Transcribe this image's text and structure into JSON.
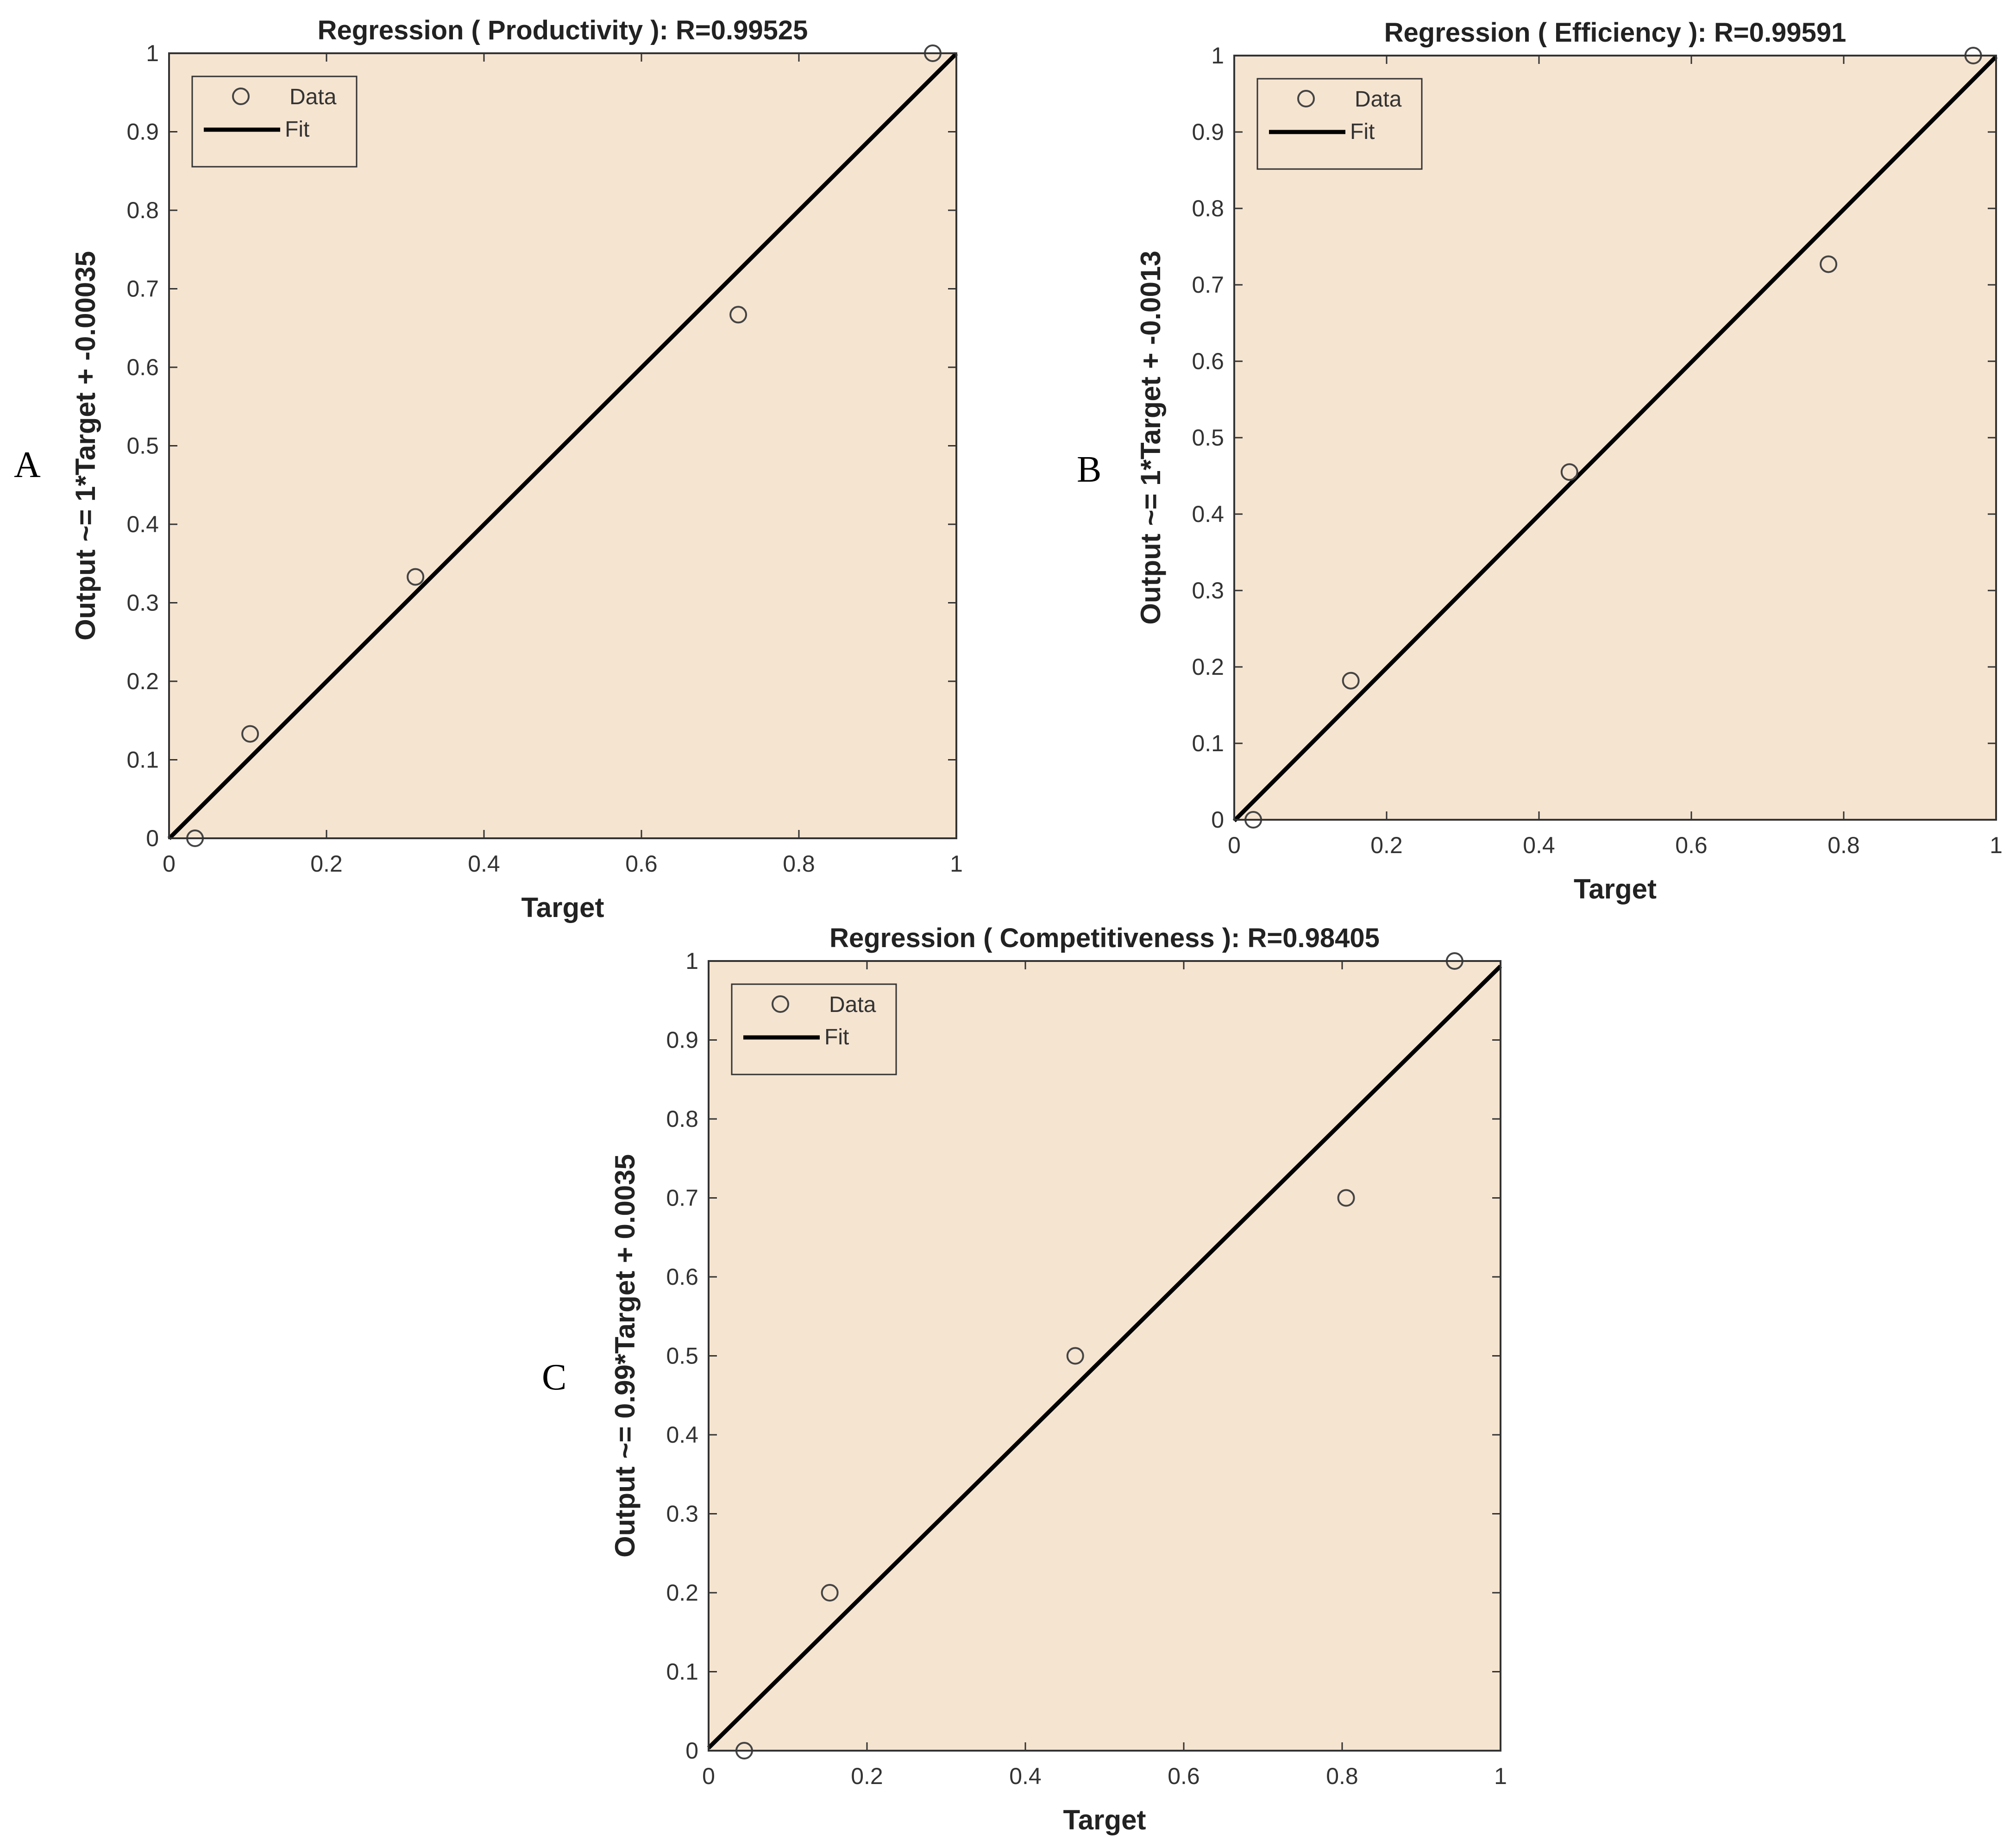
{
  "colors": {
    "plot_background": "#f5e4d0",
    "axis": "#333333",
    "fit_line": "#000000",
    "marker_edge": "#444444"
  },
  "panels": [
    {
      "letter": "A"
    },
    {
      "letter": "B"
    },
    {
      "letter": "C"
    }
  ],
  "chart_data": [
    {
      "type": "scatter",
      "title": "Regression ( Productivity ): R=0.99525",
      "xlabel": "Target",
      "ylabel": "Output ~= 1*Target + -0.00035",
      "xlim": [
        0,
        1
      ],
      "ylim": [
        0,
        1
      ],
      "x_ticks": [
        "0",
        "0.2",
        "0.4",
        "0.6",
        "0.8",
        "1"
      ],
      "y_ticks": [
        "0",
        "0.1",
        "0.2",
        "0.3",
        "0.4",
        "0.5",
        "0.6",
        "0.7",
        "0.8",
        "0.9",
        "1"
      ],
      "grid": false,
      "legend_placement": "top-left",
      "series": [
        {
          "name": "Data",
          "marker": "open-circle",
          "x": [
            0.033,
            0.103,
            0.313,
            0.723,
            0.97
          ],
          "y": [
            0.0,
            0.133,
            0.333,
            0.667,
            1.0
          ]
        },
        {
          "name": "Fit",
          "line": "solid",
          "slope": 1,
          "intercept": -0.00035
        }
      ]
    },
    {
      "type": "scatter",
      "title": "Regression ( Efficiency ): R=0.99591",
      "xlabel": "Target",
      "ylabel": "Output ~= 1*Target + -0.0013",
      "xlim": [
        0,
        1
      ],
      "ylim": [
        0,
        1
      ],
      "x_ticks": [
        "0",
        "0.2",
        "0.4",
        "0.6",
        "0.8",
        "1"
      ],
      "y_ticks": [
        "0",
        "0.1",
        "0.2",
        "0.3",
        "0.4",
        "0.5",
        "0.6",
        "0.7",
        "0.8",
        "0.9",
        "1"
      ],
      "grid": false,
      "legend_placement": "top-left",
      "series": [
        {
          "name": "Data",
          "marker": "open-circle",
          "x": [
            0.025,
            0.153,
            0.44,
            0.78,
            0.97
          ],
          "y": [
            0.0,
            0.182,
            0.455,
            0.727,
            1.0
          ]
        },
        {
          "name": "Fit",
          "line": "solid",
          "slope": 1,
          "intercept": -0.0013
        }
      ]
    },
    {
      "type": "scatter",
      "title": "Regression ( Competitiveness ): R=0.98405",
      "xlabel": "Target",
      "ylabel": "Output ~= 0.99*Target + 0.0035",
      "xlim": [
        0,
        1
      ],
      "ylim": [
        0,
        1
      ],
      "x_ticks": [
        "0",
        "0.2",
        "0.4",
        "0.6",
        "0.8",
        "1"
      ],
      "y_ticks": [
        "0",
        "0.1",
        "0.2",
        "0.3",
        "0.4",
        "0.5",
        "0.6",
        "0.7",
        "0.8",
        "0.9",
        "1"
      ],
      "grid": false,
      "legend_placement": "top-left",
      "series": [
        {
          "name": "Data",
          "marker": "open-circle",
          "x": [
            0.045,
            0.153,
            0.463,
            0.805,
            0.942
          ],
          "y": [
            0.0,
            0.2,
            0.5,
            0.7,
            1.0
          ]
        },
        {
          "name": "Fit",
          "line": "solid",
          "slope": 0.99,
          "intercept": 0.0035
        }
      ]
    }
  ]
}
